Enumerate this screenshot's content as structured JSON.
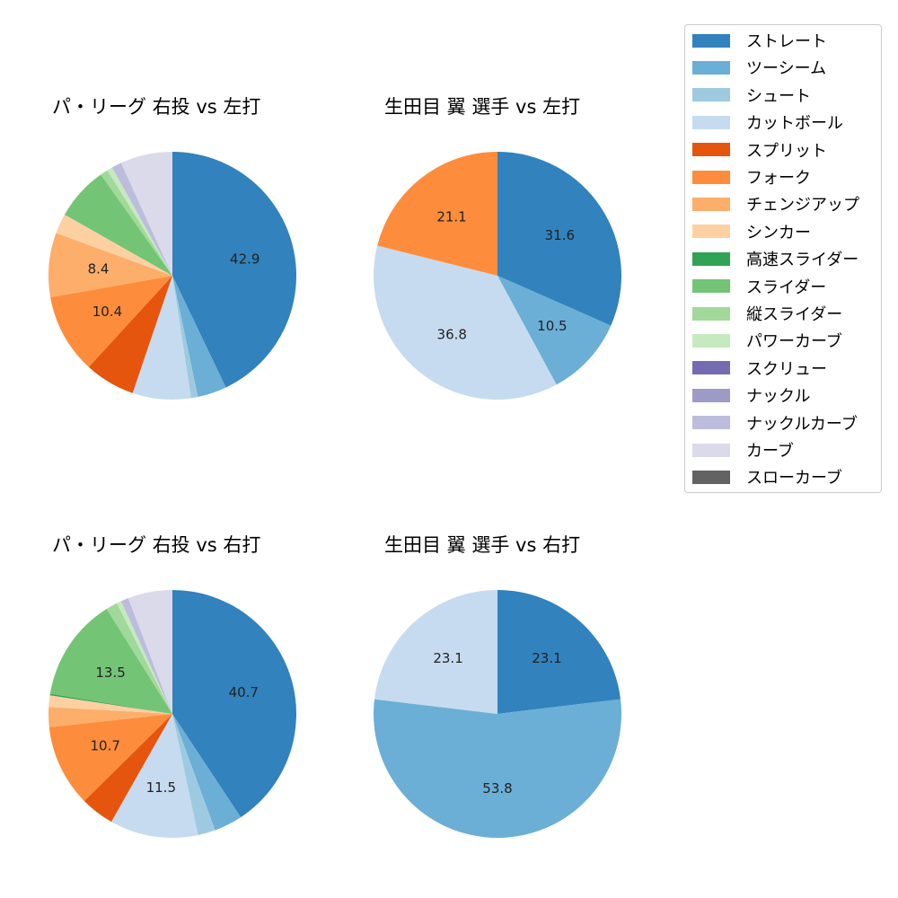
{
  "chart_data": [
    {
      "type": "pie",
      "title": "パ・リーグ 右投 vs 左打",
      "categories": [
        "ストレート",
        "ツーシーム",
        "シュート",
        "カットボール",
        "スプリット",
        "フォーク",
        "チェンジアップ",
        "シンカー",
        "スライダー",
        "縦スライダー",
        "パワーカーブ",
        "ナックルカーブ",
        "カーブ"
      ],
      "values": [
        42.9,
        3.8,
        0.9,
        7.6,
        6.6,
        10.4,
        8.4,
        2.6,
        7.0,
        1.0,
        0.7,
        1.3,
        6.8
      ],
      "labels_shown": {
        "ストレート": "42.9",
        "フォーク": "10.4",
        "チェンジアップ": "8.4"
      },
      "start_angle": 90,
      "direction": "clockwise"
    },
    {
      "type": "pie",
      "title": "生田目 翼 選手 vs 左打",
      "categories": [
        "ストレート",
        "ツーシーム",
        "カットボール",
        "フォーク"
      ],
      "values": [
        31.6,
        10.5,
        36.8,
        21.1
      ],
      "labels_shown": {
        "ストレート": "31.6",
        "ツーシーム": "10.5",
        "カットボール": "36.8",
        "フォーク": "21.1"
      },
      "start_angle": 90,
      "direction": "clockwise"
    },
    {
      "type": "pie",
      "title": "パ・リーグ 右投 vs 右打",
      "categories": [
        "ストレート",
        "ツーシーム",
        "シュート",
        "カットボール",
        "スプリット",
        "フォーク",
        "チェンジアップ",
        "シンカー",
        "高速スライダー",
        "スライダー",
        "縦スライダー",
        "パワーカーブ",
        "ナックルカーブ",
        "カーブ"
      ],
      "values": [
        40.7,
        3.7,
        2.3,
        11.5,
        4.4,
        10.7,
        2.6,
        1.5,
        0.2,
        13.5,
        1.5,
        0.6,
        1.0,
        5.8
      ],
      "labels_shown": {
        "ストレート": "40.7",
        "カットボール": "11.5",
        "フォーク": "10.7",
        "スライダー": "13.5"
      },
      "start_angle": 90,
      "direction": "clockwise"
    },
    {
      "type": "pie",
      "title": "生田目 翼 選手 vs 右打",
      "categories": [
        "ストレート",
        "ツーシーム",
        "カットボール"
      ],
      "values": [
        23.1,
        53.8,
        23.1
      ],
      "labels_shown": {
        "ストレート": "23.1",
        "ツーシーム": "53.8",
        "カットボール": "23.1"
      },
      "start_angle": 90,
      "direction": "clockwise"
    }
  ],
  "titles": {
    "top_left": "パ・リーグ 右投 vs 左打",
    "top_right": "生田目 翼 選手 vs 左打",
    "bottom_left": "パ・リーグ 右投 vs 右打",
    "bottom_right": "生田目 翼 選手 vs 右打"
  },
  "legend": {
    "items": [
      {
        "label": "ストレート",
        "color": "#3182bd"
      },
      {
        "label": "ツーシーム",
        "color": "#6baed6"
      },
      {
        "label": "シュート",
        "color": "#9ecae1"
      },
      {
        "label": "カットボール",
        "color": "#c6dbef"
      },
      {
        "label": "スプリット",
        "color": "#e6550d"
      },
      {
        "label": "フォーク",
        "color": "#fd8d3c"
      },
      {
        "label": "チェンジアップ",
        "color": "#fdae6b"
      },
      {
        "label": "シンカー",
        "color": "#fdd0a2"
      },
      {
        "label": "高速スライダー",
        "color": "#31a354"
      },
      {
        "label": "スライダー",
        "color": "#74c476"
      },
      {
        "label": "縦スライダー",
        "color": "#a1d99b"
      },
      {
        "label": "パワーカーブ",
        "color": "#c7e9c0"
      },
      {
        "label": "スクリュー",
        "color": "#756bb1"
      },
      {
        "label": "ナックル",
        "color": "#9e9ac8"
      },
      {
        "label": "ナックルカーブ",
        "color": "#bcbddc"
      },
      {
        "label": "カーブ",
        "color": "#dadaeb"
      },
      {
        "label": "スローカーブ",
        "color": "#636363"
      }
    ]
  }
}
